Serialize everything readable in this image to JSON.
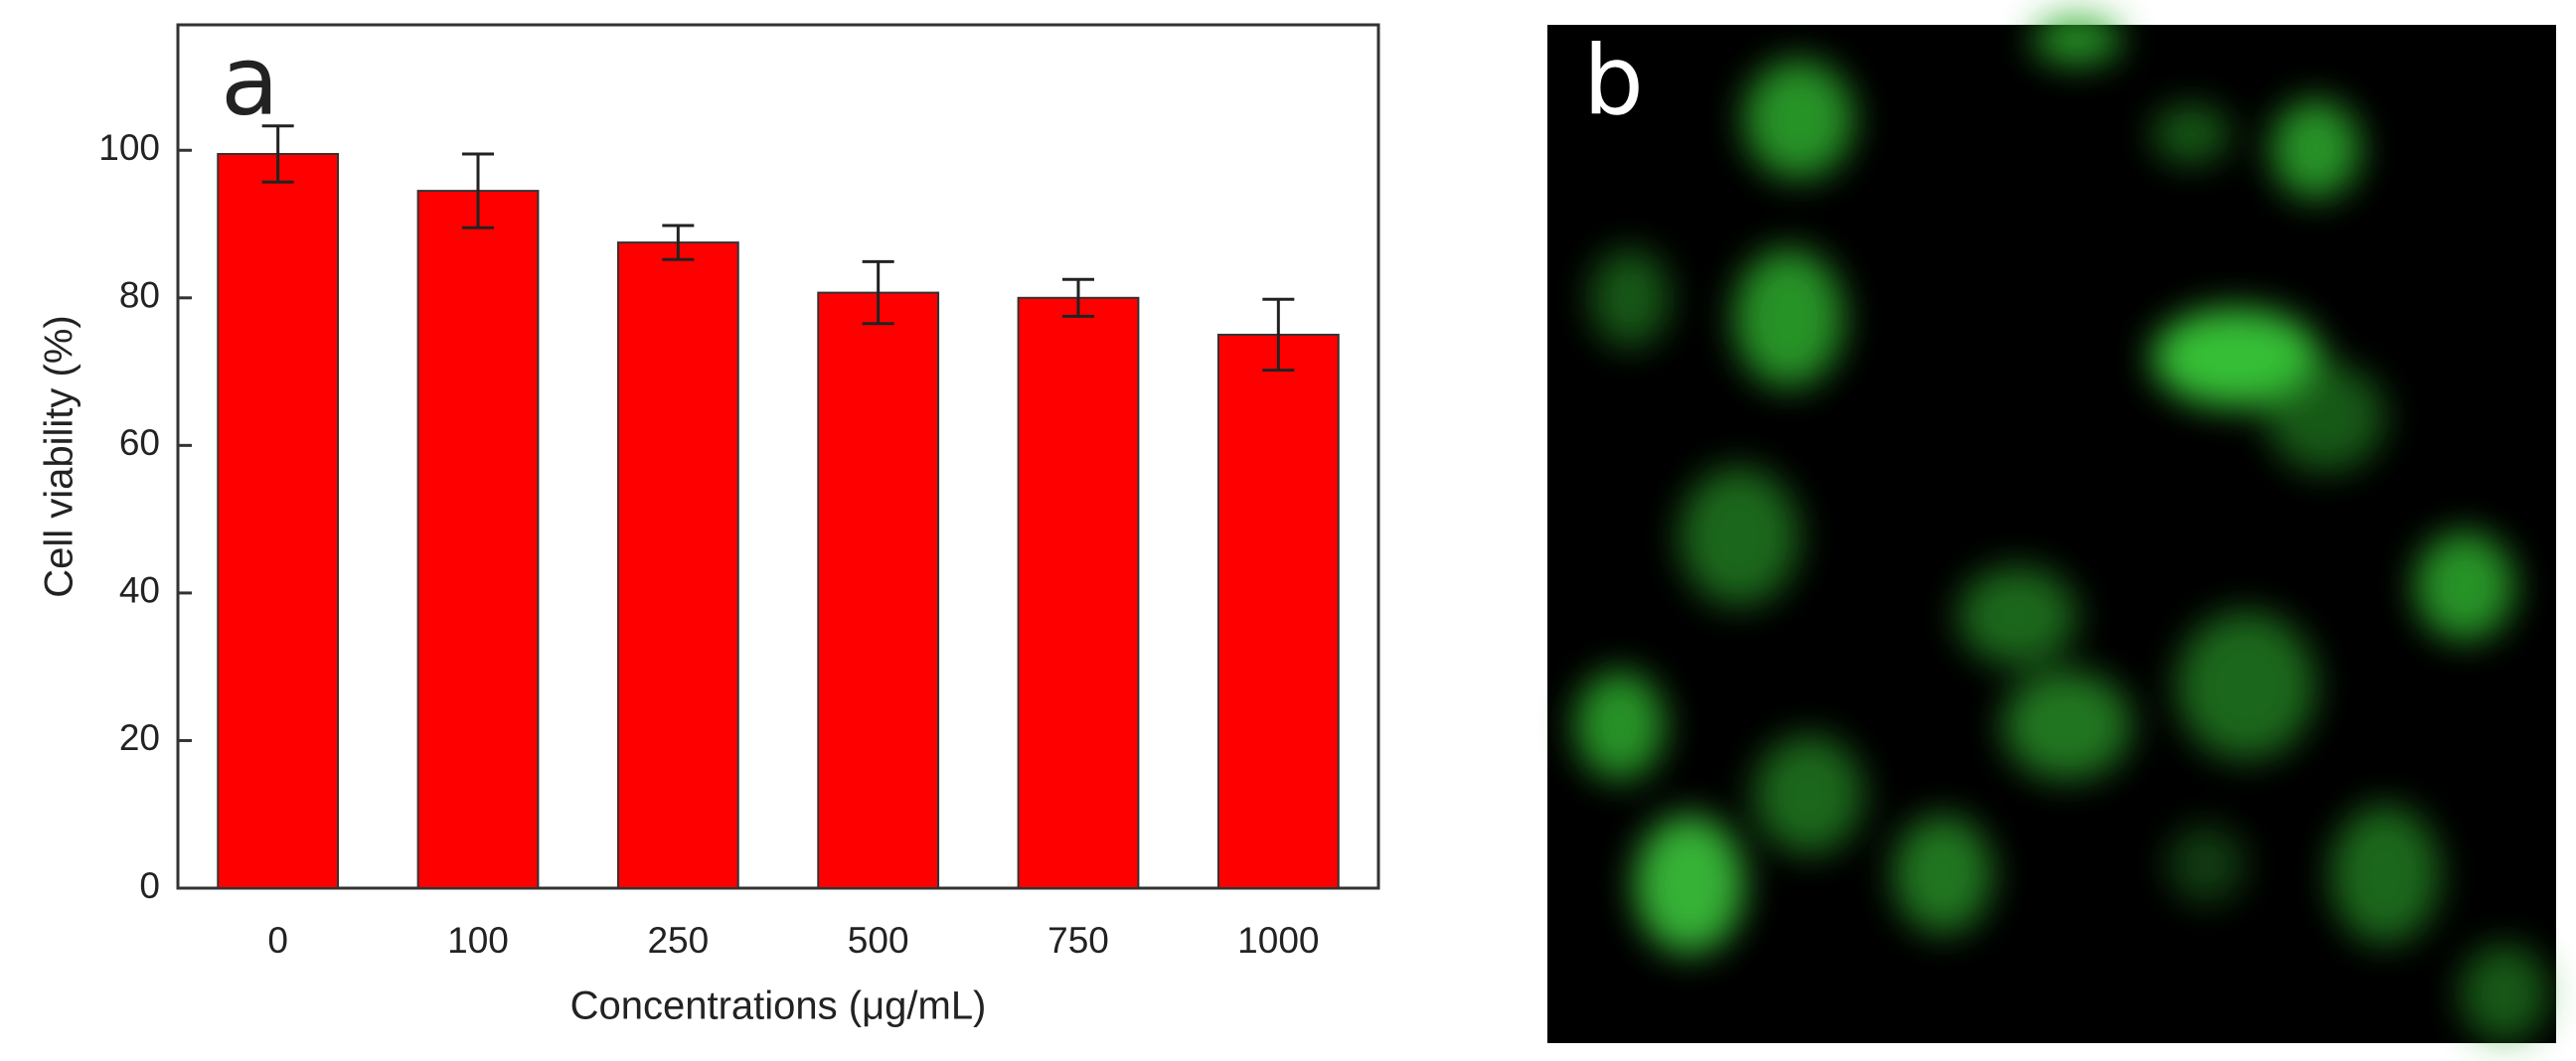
{
  "chart_data": {
    "type": "bar",
    "panel_label": "a",
    "xlabel": "Concentrations (μg/mL)",
    "ylabel": "Cell viability (%)",
    "categories": [
      "0",
      "100",
      "250",
      "500",
      "750",
      "1000"
    ],
    "values": [
      99.5,
      94.5,
      87.5,
      80.7,
      80,
      75
    ],
    "errors": [
      3.8,
      5,
      2.3,
      4.2,
      2.5,
      4.8
    ],
    "color": "#ff0000",
    "ylim": [
      0,
      117
    ],
    "yticks": [
      0,
      20,
      40,
      60,
      80,
      100
    ]
  },
  "image_panel": {
    "label": "b"
  }
}
